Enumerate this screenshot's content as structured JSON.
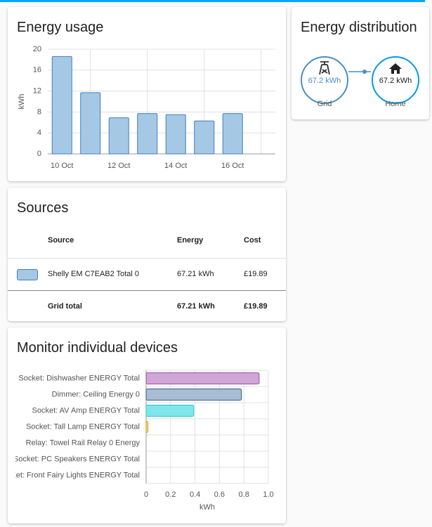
{
  "chart_data": [
    {
      "type": "bar",
      "title": "Energy usage",
      "ylabel": "kWh",
      "categories": [
        "10 Oct",
        null,
        "12 Oct",
        null,
        "14 Oct",
        null,
        "16 Oct",
        null
      ],
      "values": [
        18.6,
        11.7,
        6.9,
        7.7,
        7.5,
        6.3,
        7.7,
        null
      ],
      "color": "#a5c8e4",
      "edge_color": "#3e7fbf",
      "ylim": [
        0,
        20
      ],
      "yticks": [
        0,
        4,
        8,
        12,
        16,
        20
      ],
      "grid": true
    },
    {
      "type": "hbar",
      "title": "Monitor individual devices",
      "xlabel": "kWh",
      "categories": [
        "Socket: Dishwasher ENERGY Total",
        "Dimmer: Ceiling Energy 0",
        "Socket: AV Amp ENERGY Total",
        "Socket: Tall Lamp ENERGY Total",
        "Relay: Towel Rail Relay 0 Energy",
        "Socket: PC Speakers ENERGY Total",
        "Socket: Front Fairy Lights ENERGY Total"
      ],
      "values": [
        0.925,
        0.78,
        0.39,
        0.015,
        0,
        0,
        0
      ],
      "colors": [
        "#cfa6d6",
        "#a8bcd4",
        "#80e6ea",
        "#f3d98a",
        "#ffc9a8",
        "#b9dfb3",
        "#f4b8b8"
      ],
      "edge_colors": [
        "#9b4dab",
        "#3e5a80",
        "#27c5cf",
        "#c9a227",
        "#ff7a3d",
        "#4caf50",
        "#e05050"
      ],
      "xlim": [
        0,
        1
      ],
      "xticks": [
        0,
        0.2,
        0.4,
        0.6,
        0.8,
        {
          "value": 1,
          "label": "1.0"
        }
      ],
      "grid": true
    }
  ],
  "distribution": {
    "title": "Energy distribution",
    "nodes": [
      {
        "label": "Grid",
        "value": "67.2 kWh"
      },
      {
        "label": "Home",
        "value": "67.2 kWh"
      }
    ]
  },
  "sources": {
    "title": "Sources",
    "columns": [
      "Source",
      "Energy",
      "Cost"
    ],
    "rows": [
      [
        "Shelly EM C7EAB2 Total 0",
        "67.21 kWh",
        "£19.89"
      ]
    ],
    "swatch_color": "#a5c8e4",
    "swatch_edge": "#3e7fbf",
    "total": [
      "Grid total",
      "67.21 kWh",
      "£19.89"
    ]
  }
}
